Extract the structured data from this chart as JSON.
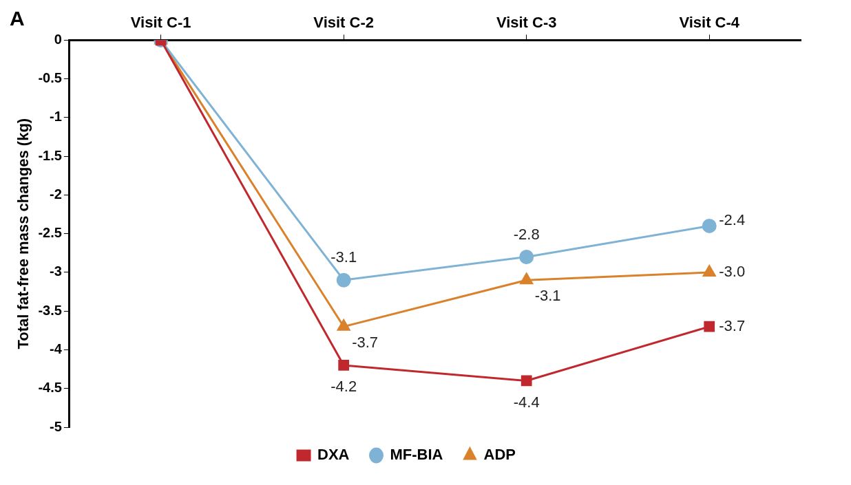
{
  "chart_data": {
    "type": "line",
    "ylabel": "Total fat-free mass changes (kg)",
    "categories": [
      "Visit C-1",
      "Visit C-2",
      "Visit C-3",
      "Visit C-4"
    ],
    "series": [
      {
        "name": "DXA",
        "color": "#c0282e",
        "marker": "square",
        "values": [
          0,
          -4.2,
          -4.4,
          -3.7
        ],
        "value_labels": [
          null,
          "-4.2",
          "-4.4",
          "-3.7"
        ]
      },
      {
        "name": "MF-BIA",
        "color": "#7fb3d5",
        "marker": "circle",
        "values": [
          0,
          -3.1,
          -2.8,
          -2.4
        ],
        "value_labels": [
          null,
          "-3.1",
          "-2.8",
          "-2.4"
        ]
      },
      {
        "name": "ADP",
        "color": "#d9822b",
        "marker": "triangle",
        "values": [
          0,
          -3.7,
          -3.1,
          -3.0
        ],
        "value_labels": [
          null,
          "-3.7",
          "-3.1",
          "-3.0"
        ]
      }
    ],
    "ylim": [
      -5,
      0
    ],
    "yticks": [
      0,
      -0.5,
      -1,
      -1.5,
      -2,
      -2.5,
      -3,
      -3.5,
      -4,
      -4.5,
      -5
    ],
    "grid": false,
    "legend": "bottom",
    "line_style": "solid",
    "annotations": [
      "A"
    ]
  }
}
